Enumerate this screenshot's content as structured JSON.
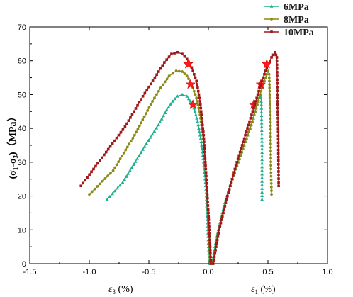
{
  "chart_data": {
    "type": "line",
    "x_axis": {
      "min": -1.5,
      "max": 1.0,
      "ticks": [
        "-1.5",
        "-1.0",
        "-0.5",
        "0.0",
        "0.5",
        "1.0"
      ],
      "tick_values": [
        -1.5,
        -1.0,
        -0.5,
        0.0,
        0.5,
        1.0
      ],
      "label_left": {
        "symbol": "ε",
        "subscript": "3",
        "suffix": " (%)"
      },
      "label_right": {
        "symbol": "ε",
        "subscript": "1",
        "suffix": " (%)"
      }
    },
    "y_axis": {
      "min": 0,
      "max": 70,
      "ticks": [
        "0",
        "10",
        "20",
        "30",
        "40",
        "50",
        "60",
        "70"
      ],
      "tick_values": [
        0,
        10,
        20,
        30,
        40,
        50,
        60,
        70
      ],
      "label": {
        "open": "(σ",
        "sub1": "1",
        "mid": "-σ",
        "sub2": "3",
        "close": ")",
        "unit": "（MPa）"
      }
    },
    "grid": false,
    "legend_position": "top-right",
    "series": [
      {
        "name": "6MPa",
        "color": "#20b090",
        "marker": "triangle",
        "left_branch": [
          [
            -0.85,
            19
          ],
          [
            -0.72,
            24
          ],
          [
            -0.52,
            35.5
          ],
          [
            -0.42,
            41
          ],
          [
            -0.35,
            45.5
          ],
          [
            -0.3,
            48
          ],
          [
            -0.26,
            49.5
          ],
          [
            -0.22,
            50
          ],
          [
            -0.18,
            49.5
          ],
          [
            -0.15,
            48
          ],
          [
            -0.12,
            46
          ],
          [
            -0.09,
            42
          ],
          [
            -0.06,
            36
          ],
          [
            -0.04,
            30
          ],
          [
            -0.02,
            22
          ],
          [
            -0.01,
            14
          ],
          [
            0.0,
            6
          ],
          [
            0.01,
            0
          ]
        ],
        "right_branch": [
          [
            0.03,
            0
          ],
          [
            0.07,
            8
          ],
          [
            0.13,
            17
          ],
          [
            0.2,
            25
          ],
          [
            0.27,
            32
          ],
          [
            0.33,
            38
          ],
          [
            0.37,
            42
          ],
          [
            0.4,
            46
          ],
          [
            0.42,
            48.5
          ],
          [
            0.44,
            50
          ],
          [
            0.445,
            47
          ],
          [
            0.45,
            35
          ],
          [
            0.45,
            19
          ]
        ],
        "star": [
          [
            -0.13,
            47
          ],
          [
            0.38,
            47
          ]
        ]
      },
      {
        "name": "8MPa",
        "color": "#8a8a1a",
        "marker": "circle",
        "left_branch": [
          [
            -1.0,
            20.5
          ],
          [
            -0.8,
            27.5
          ],
          [
            -0.62,
            38
          ],
          [
            -0.47,
            48
          ],
          [
            -0.4,
            52
          ],
          [
            -0.33,
            55.5
          ],
          [
            -0.27,
            57
          ],
          [
            -0.22,
            56.8
          ],
          [
            -0.18,
            55.5
          ],
          [
            -0.14,
            53
          ],
          [
            -0.1,
            49
          ],
          [
            -0.07,
            44
          ],
          [
            -0.04,
            36
          ],
          [
            -0.02,
            26
          ],
          [
            0.0,
            14
          ],
          [
            0.01,
            4
          ],
          [
            0.015,
            0
          ]
        ],
        "right_branch": [
          [
            0.035,
            0
          ],
          [
            0.08,
            9
          ],
          [
            0.15,
            19
          ],
          [
            0.22,
            27
          ],
          [
            0.3,
            35
          ],
          [
            0.36,
            41
          ],
          [
            0.41,
            47
          ],
          [
            0.45,
            52
          ],
          [
            0.48,
            55
          ],
          [
            0.5,
            57
          ],
          [
            0.51,
            56
          ],
          [
            0.52,
            45
          ],
          [
            0.525,
            28
          ],
          [
            0.53,
            20.5
          ]
        ],
        "star": [
          [
            -0.15,
            53
          ],
          [
            0.44,
            53
          ]
        ]
      },
      {
        "name": "10MPa",
        "color": "#a01818",
        "marker": "square",
        "left_branch": [
          [
            -1.07,
            23
          ],
          [
            -0.7,
            40.5
          ],
          [
            -0.55,
            49.5
          ],
          [
            -0.45,
            55
          ],
          [
            -0.37,
            59.5
          ],
          [
            -0.31,
            62
          ],
          [
            -0.26,
            62.5
          ],
          [
            -0.22,
            62
          ],
          [
            -0.18,
            60.5
          ],
          [
            -0.14,
            58
          ],
          [
            -0.1,
            54
          ],
          [
            -0.07,
            48
          ],
          [
            -0.04,
            38
          ],
          [
            -0.02,
            27
          ],
          [
            0.0,
            15
          ],
          [
            0.015,
            5
          ],
          [
            0.02,
            0
          ]
        ],
        "right_branch": [
          [
            0.04,
            0
          ],
          [
            0.09,
            10
          ],
          [
            0.16,
            20
          ],
          [
            0.23,
            29
          ],
          [
            0.31,
            38
          ],
          [
            0.38,
            46
          ],
          [
            0.44,
            53
          ],
          [
            0.49,
            58
          ],
          [
            0.53,
            61
          ],
          [
            0.56,
            62.5
          ],
          [
            0.575,
            61
          ],
          [
            0.58,
            50
          ],
          [
            0.585,
            40
          ],
          [
            0.59,
            23
          ]
        ],
        "star": [
          [
            -0.17,
            59
          ],
          [
            0.49,
            59
          ]
        ]
      }
    ]
  }
}
